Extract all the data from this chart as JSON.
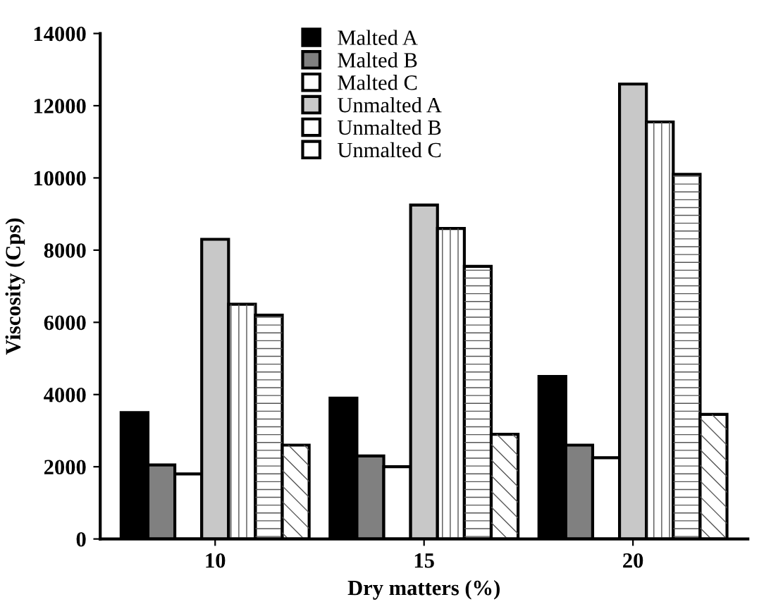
{
  "chart_data": {
    "type": "bar",
    "xlabel": "Dry matters (%)",
    "ylabel": "Viscosity (Cps)",
    "categories": [
      "10",
      "15",
      "20"
    ],
    "series": [
      {
        "name": "Malted A",
        "color": "#000000",
        "values": [
          3500,
          3900,
          4500
        ]
      },
      {
        "name": "Malted B",
        "color": "#808080",
        "values": [
          2050,
          2300,
          2600
        ]
      },
      {
        "name": "Malted C",
        "color": "#ffffff",
        "values": [
          1800,
          2000,
          2250
        ]
      },
      {
        "name": "Unmalted A",
        "color": "#c8c8c8",
        "values": [
          8300,
          9250,
          12600
        ]
      },
      {
        "name": "Unmalted B",
        "color": "#ffffff",
        "values": [
          6500,
          8600,
          11550
        ]
      },
      {
        "name": "Unmalted C",
        "color": "#ffffff",
        "values": [
          6200,
          7550,
          10100
        ]
      },
      {
        "color": "#ffffff",
        "values": [
          2600,
          2900,
          3450
        ]
      }
    ],
    "ylim": [
      0,
      14000
    ],
    "yticks": [
      0,
      2000,
      4000,
      6000,
      8000,
      10000,
      12000,
      14000
    ],
    "grid": false,
    "legend": "top"
  }
}
